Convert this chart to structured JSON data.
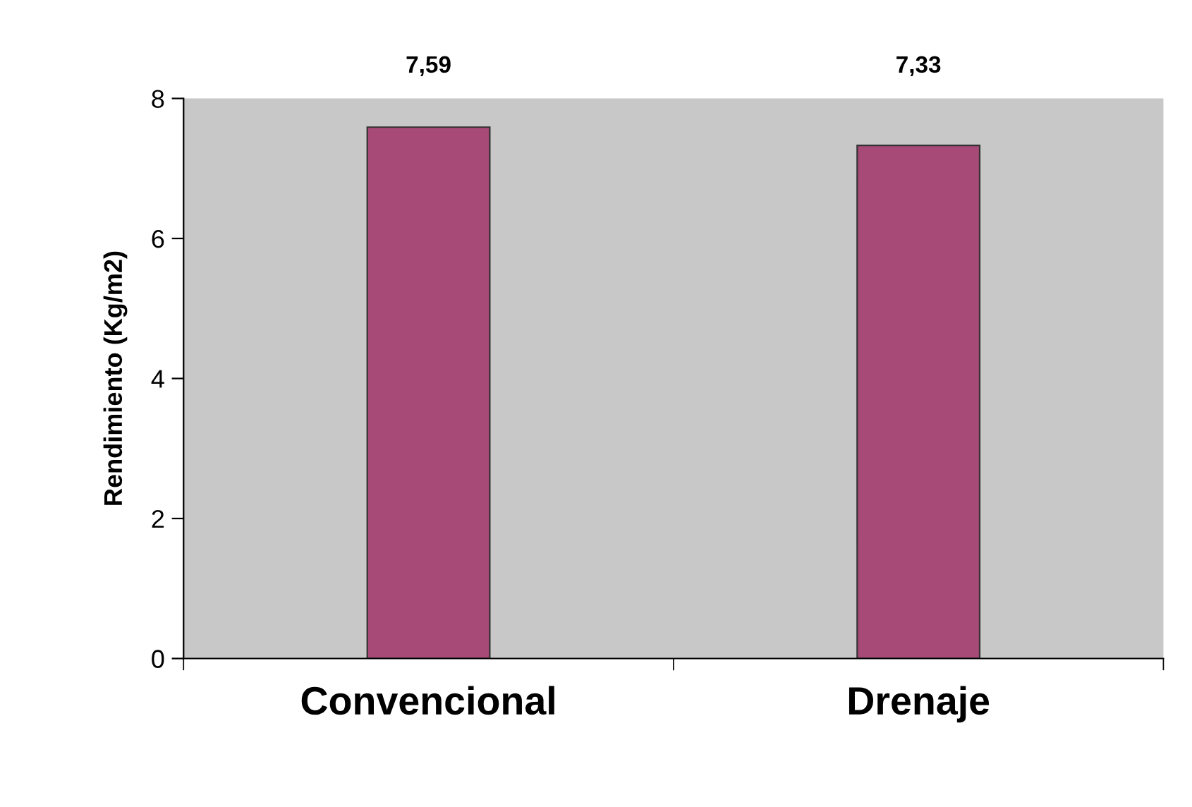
{
  "chart_data": {
    "type": "bar",
    "ylabel": "Rendimiento (Kg/m2)",
    "categories": [
      "Convencional",
      "Drenaje"
    ],
    "values": [
      7.59,
      7.33
    ],
    "color": "#a84a78",
    "value_labels": [
      "7,59",
      "7,33"
    ],
    "ylim": [
      0,
      8
    ],
    "yticks": [
      0,
      2,
      4,
      6,
      8
    ],
    "grid": false,
    "legend": false
  }
}
